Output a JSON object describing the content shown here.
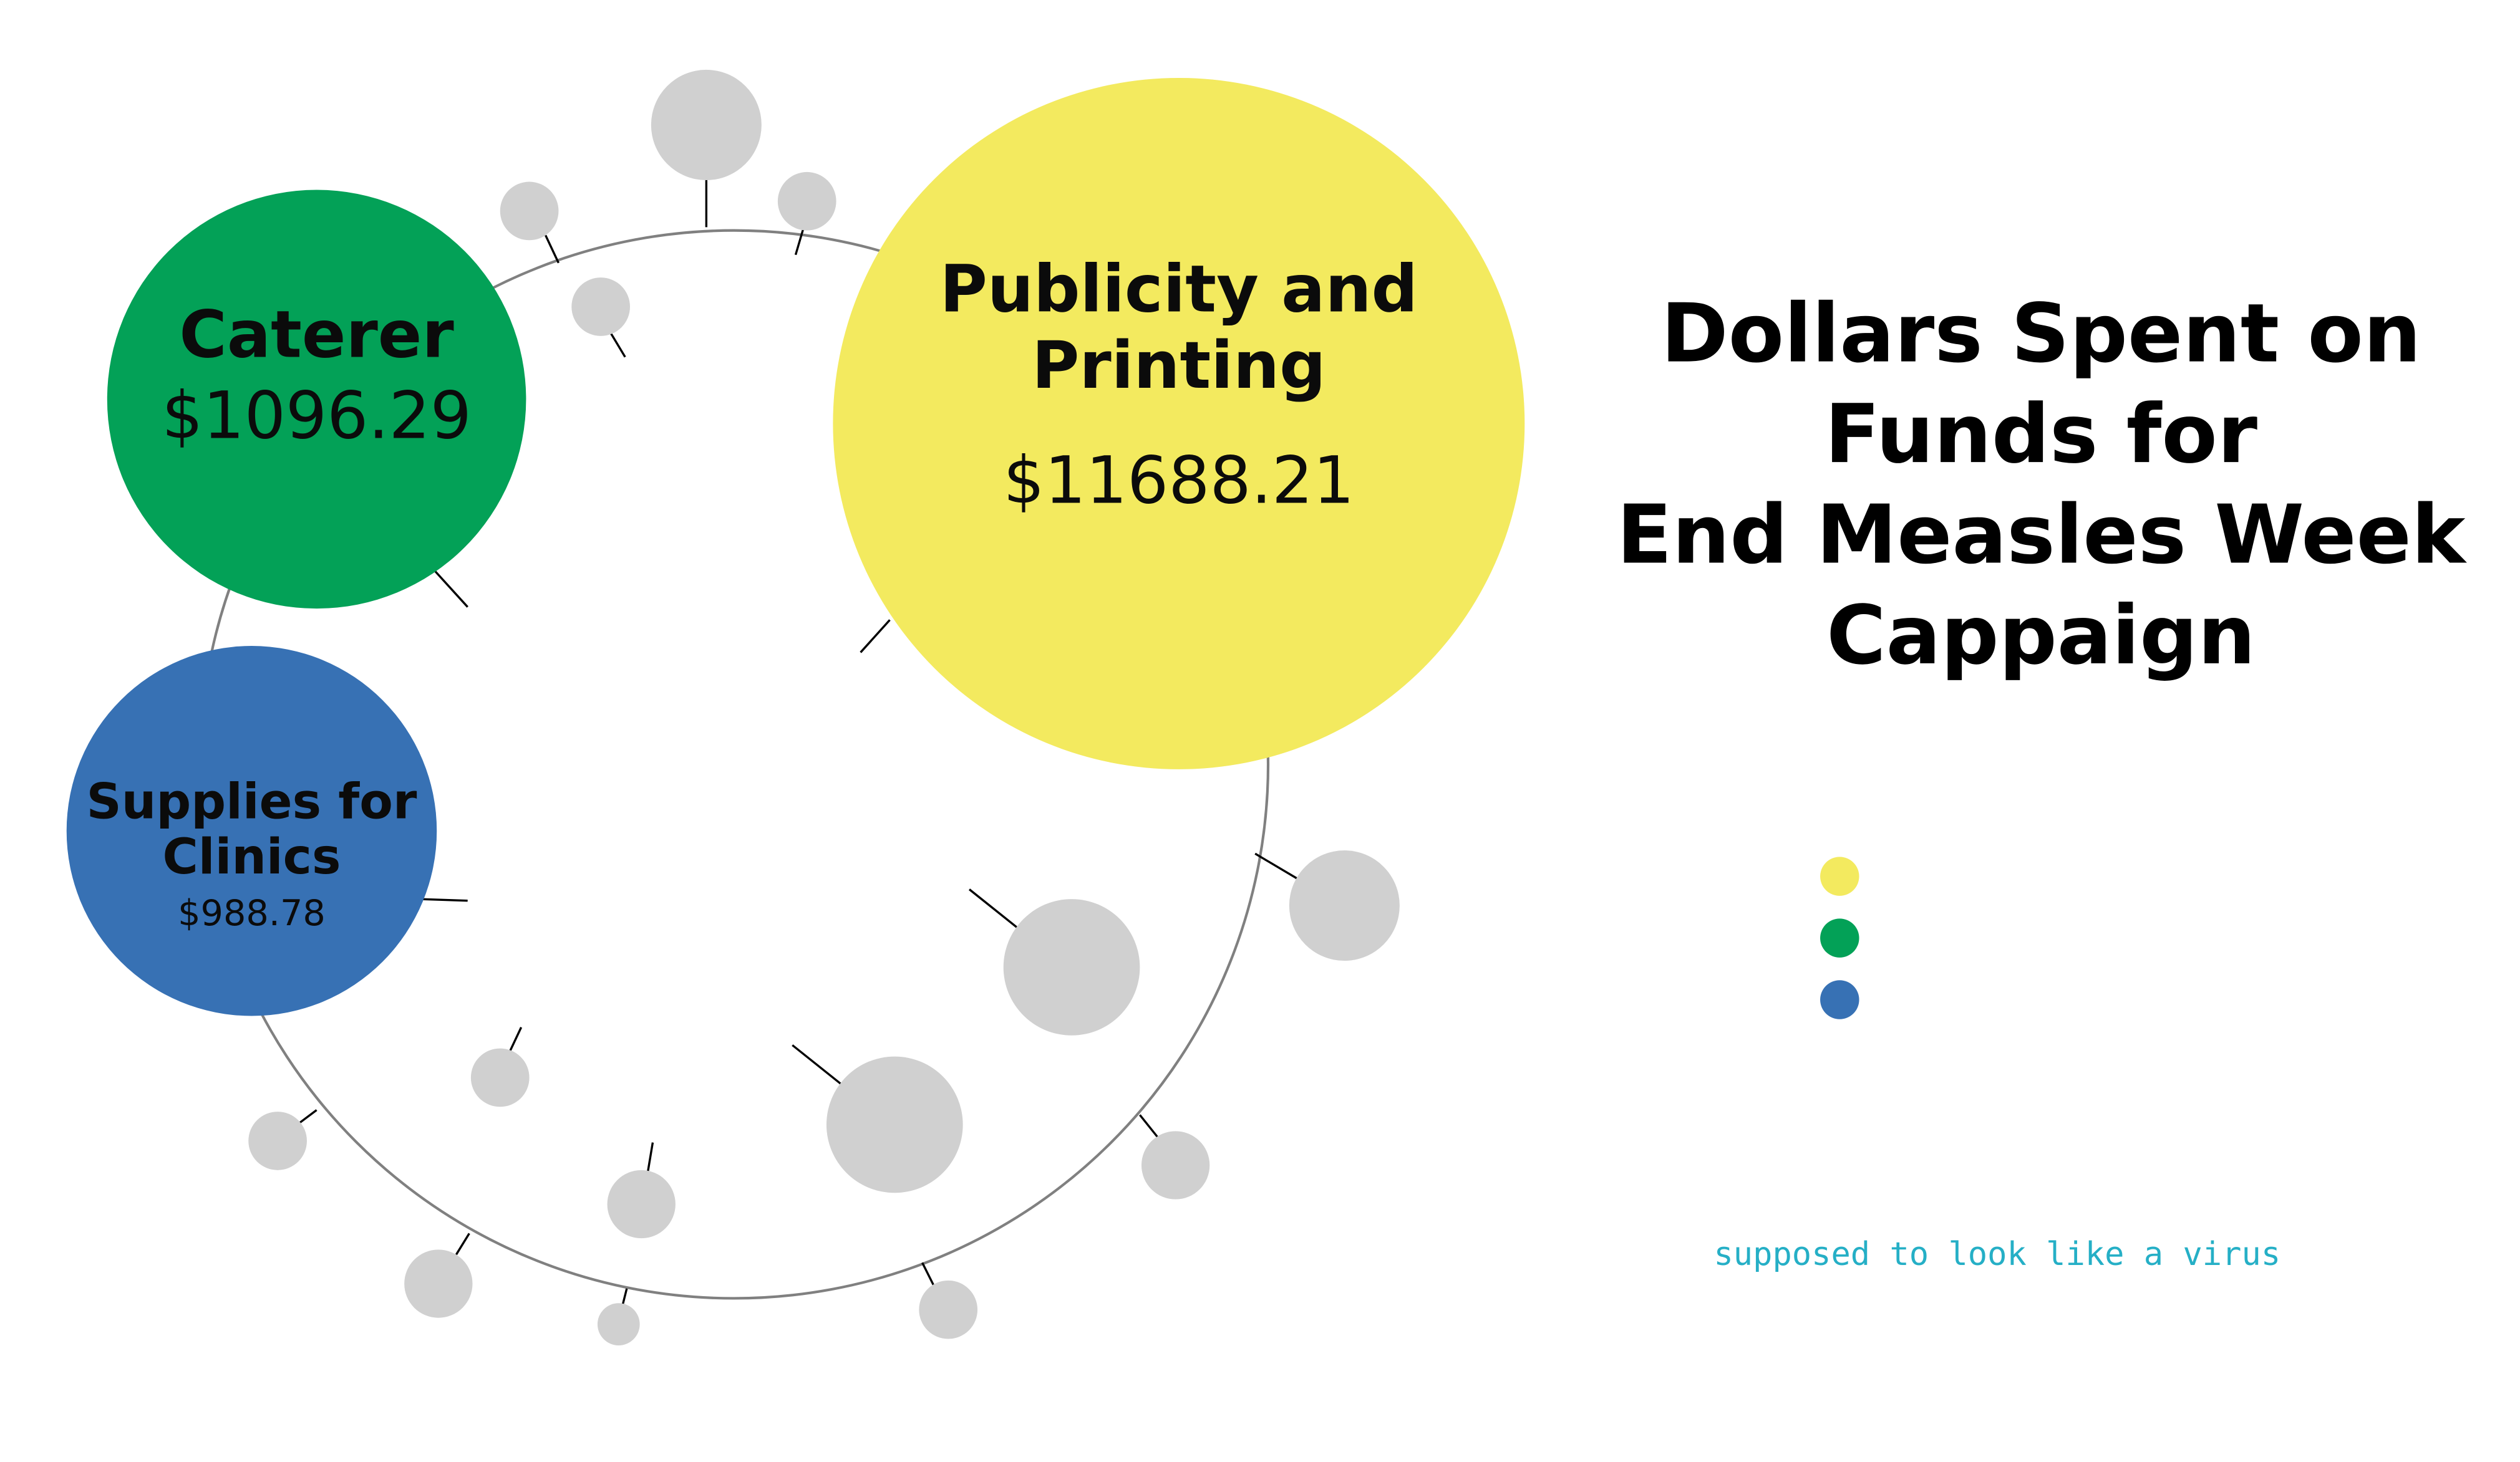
{
  "chart_data": {
    "type": "bubble",
    "title": "Dollars Spent on Funds for End Measles Week Cappaign",
    "title_lines": [
      "Dollars Spent on",
      "Funds for",
      "End Measles Week",
      "Cappaign"
    ],
    "categories": [
      "Publicity and Printing",
      "Caterer",
      "Supplies for Clinics"
    ],
    "values": [
      11688.21,
      1096.29,
      988.78
    ],
    "series": [
      {
        "name": "Publicity and Printing",
        "label_lines": [
          "Publicity and",
          "Printing"
        ],
        "value": 11688.21,
        "value_label": "$11688.21",
        "color": "#f3ea5f"
      },
      {
        "name": "Caterer",
        "label_lines": [
          "Caterer"
        ],
        "value": 1096.29,
        "value_label": "$1096.29",
        "color": "#03a157"
      },
      {
        "name": "Supplies for Clinics",
        "label_lines": [
          "Supplies for",
          "Clinics"
        ],
        "value": 988.78,
        "value_label": "$988.78",
        "color": "#3771b4"
      }
    ],
    "legend": {
      "placement": "right",
      "markers": [
        "#f3ea5f",
        "#03a157",
        "#3771b4"
      ]
    },
    "decoration": {
      "ring_color": "#808080",
      "spike_color": "#000000",
      "knob_color": "#d0d0d0"
    },
    "annotation": {
      "text": "supposed to look like a virus",
      "color": "#25afc6"
    }
  }
}
